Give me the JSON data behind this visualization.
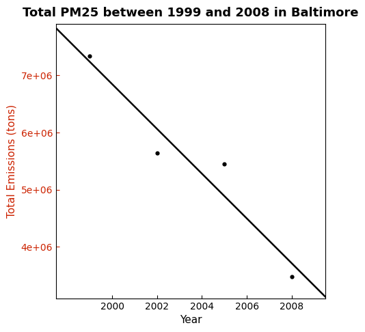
{
  "years": [
    1999,
    2002,
    2005,
    2008
  ],
  "emissions": [
    7332967,
    5635780,
    5454903,
    3475282
  ],
  "title": "Total PM25 between 1999 and 2008 in Baltimore",
  "xlabel": "Year",
  "ylabel": "Total Emissions (tons)",
  "title_color": "#000000",
  "ylabel_color": "#cc2200",
  "xlabel_color": "#000000",
  "point_color": "#000000",
  "line_color": "#000000",
  "background_color": "#ffffff",
  "xlim": [
    1997.5,
    2009.5
  ],
  "ylim": [
    3100000,
    7900000
  ],
  "yticks": [
    4000000,
    5000000,
    6000000,
    7000000
  ],
  "xticks": [
    2000,
    2002,
    2004,
    2006,
    2008
  ],
  "title_fontsize": 13,
  "label_fontsize": 11,
  "tick_fontsize": 10,
  "point_size": 12,
  "line_width": 1.8
}
